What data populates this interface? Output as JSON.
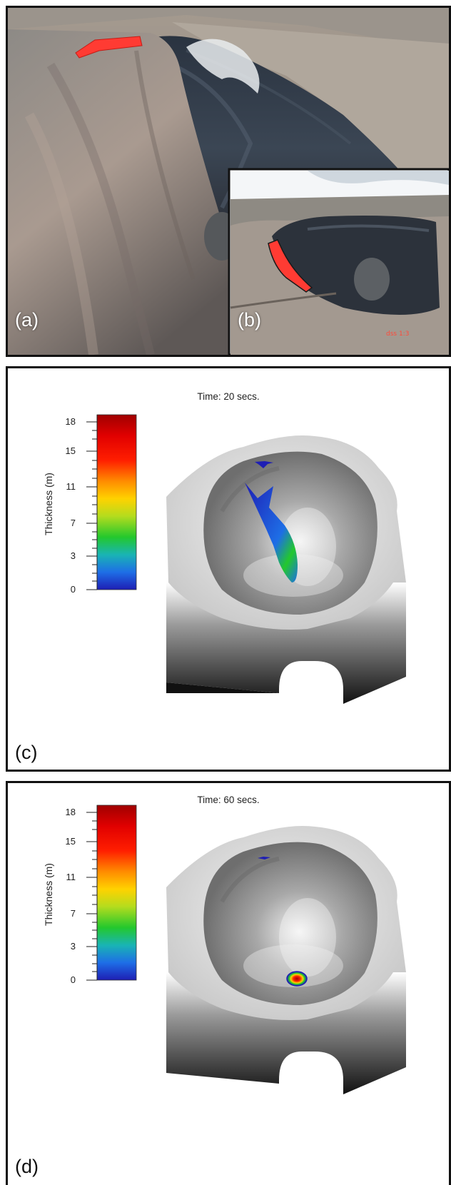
{
  "panels": [
    {
      "label": "(a)"
    },
    {
      "label": "(b)"
    },
    {
      "label": "(c)",
      "time": "Time: 20 secs."
    },
    {
      "label": "(d)",
      "time": "Time: 60 secs."
    }
  ],
  "colorbar": {
    "title": "Thickness (m)",
    "ticks": [
      "18",
      "15",
      "11",
      "7",
      "3",
      "0"
    ],
    "range": [
      0,
      18
    ],
    "colors": [
      "#1e1eb4",
      "#1e6ee6",
      "#19b4b4",
      "#23c82d",
      "#b4dc1e",
      "#ffd200",
      "#ff8c00",
      "#ff1e00",
      "#e10000",
      "#a00000"
    ]
  },
  "inset_timestamp": "dss 1:3",
  "colors": {
    "lava": "#ff3b33",
    "frame": "#111111"
  }
}
